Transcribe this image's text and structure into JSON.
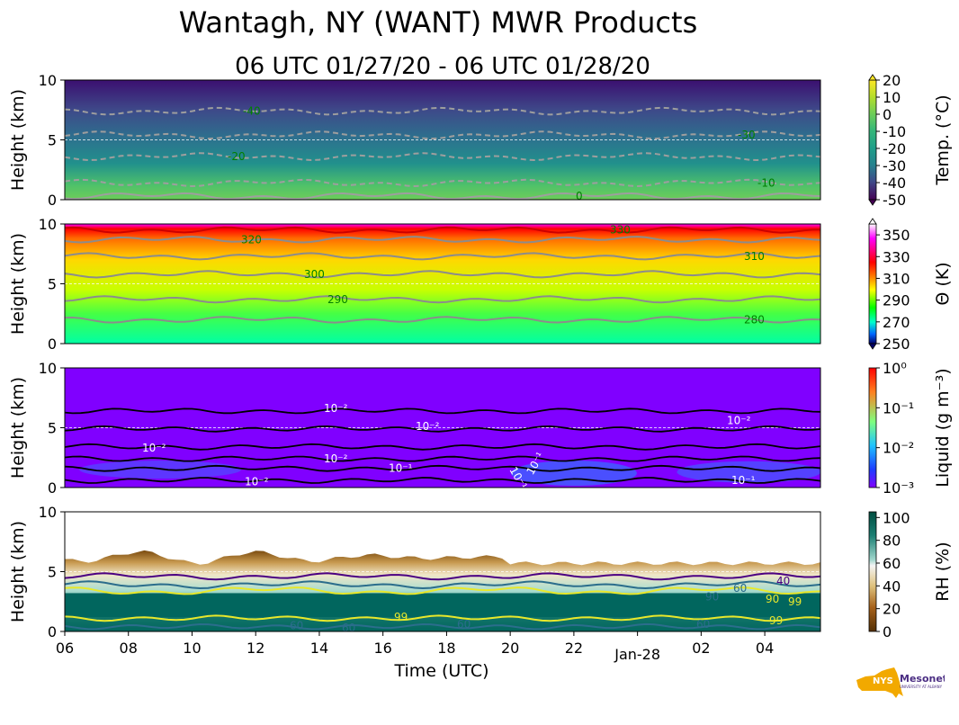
{
  "chart_data": {
    "type": "heatmap",
    "title": "Wantagh, NY (WANT) MWR Products",
    "subtitle": "06 UTC 01/27/20 - 06 UTC 01/28/20",
    "xlabel": "Time (UTC)",
    "x_ticks": [
      "06",
      "08",
      "10",
      "12",
      "14",
      "16",
      "18",
      "20",
      "22",
      "02",
      "04"
    ],
    "x_date_label": "Jan-28",
    "xlim_hours": [
      6,
      29.75
    ],
    "panels": [
      {
        "id": "temperature",
        "ylabel": "Height (km)",
        "ylim": [
          0,
          10
        ],
        "y_ticks": [
          "0",
          "5",
          "10"
        ],
        "colorbar_label": "Temp. (°C)",
        "colorbar_ticks": [
          "20",
          "10",
          "0",
          "-10",
          "-20",
          "-30",
          "-40",
          "-50"
        ],
        "colorbar_range": [
          -50,
          20
        ],
        "contour_values": [
          -40,
          -30,
          -20,
          -10,
          0
        ],
        "contour_labels": [
          "-40",
          "-30",
          "-20",
          "-10",
          "0"
        ],
        "contour_heights_km": {
          "-40": 7.4,
          "-30": 5.4,
          "-20": 3.6,
          "-10": 1.4,
          "0": 0.3
        }
      },
      {
        "id": "theta",
        "ylabel": "Height (km)",
        "ylim": [
          0,
          10
        ],
        "y_ticks": [
          "0",
          "5",
          "10"
        ],
        "colorbar_label": "Θ (K)",
        "colorbar_ticks": [
          "350",
          "330",
          "310",
          "290",
          "270",
          "250"
        ],
        "colorbar_range": [
          250,
          360
        ],
        "contour_values": [
          280,
          290,
          300,
          310,
          320,
          330
        ],
        "contour_labels": [
          "280",
          "290",
          "300",
          "310",
          "320",
          "330"
        ],
        "contour_heights_km": {
          "280": 2.0,
          "290": 3.7,
          "300": 5.8,
          "310": 7.3,
          "320": 8.7,
          "330": 9.5
        }
      },
      {
        "id": "liquid",
        "ylabel": "Height (km)",
        "ylim": [
          0,
          10
        ],
        "y_ticks": [
          "0",
          "5",
          "10"
        ],
        "colorbar_label": "Liquid (g m⁻³)",
        "colorbar_ticks": [
          "10⁰",
          "10⁻¹",
          "10⁻²",
          "10⁻³"
        ],
        "colorbar_range": [
          0.001,
          1
        ],
        "contour_labels": [
          "10⁻²",
          "10⁻²",
          "10⁻²",
          "10⁻²",
          "10⁻²",
          "10⁻²",
          "10⁻¹",
          "10⁻¹",
          "10⁻¹",
          "10⁻¹"
        ]
      },
      {
        "id": "rh",
        "ylabel": "Height (km)",
        "ylim": [
          0,
          10
        ],
        "y_ticks": [
          "0",
          "5",
          "10"
        ],
        "colorbar_label": "RH (%)",
        "colorbar_ticks": [
          "100",
          "80",
          "60",
          "40",
          "20",
          "0"
        ],
        "colorbar_range": [
          0,
          105
        ],
        "contour_labels": [
          "60",
          "60",
          "60",
          "60",
          "60",
          "99",
          "99",
          "90",
          "40",
          "90",
          "99"
        ]
      }
    ]
  },
  "logo": {
    "text": "NYS Mesonet",
    "subtext": "UNIVERSITY AT ALBANY",
    "color": "#f2a900",
    "text_color": "#4b2e83"
  }
}
